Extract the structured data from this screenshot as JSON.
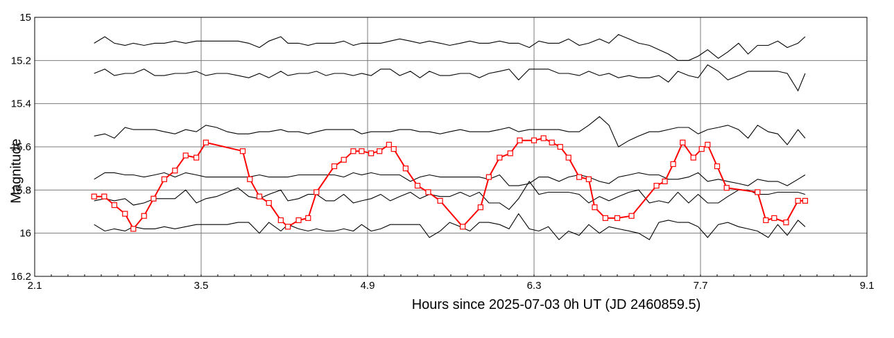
{
  "chart_data": {
    "type": "line",
    "xlabel": "Hours since 2025-07-03 0h UT (JD 2460859.5)",
    "ylabel": "Magnitude",
    "xlim": [
      2.1,
      9.1
    ],
    "ylim": [
      15.0,
      16.2
    ],
    "y_inverted": true,
    "grid": true,
    "x_major_ticks": [
      2.1,
      3.5,
      4.9,
      6.3,
      7.7,
      9.1
    ],
    "x_minor_step": 0.14,
    "y_ticks": [
      15.0,
      15.2,
      15.4,
      15.6,
      15.8,
      16.0,
      16.2
    ],
    "x_tick_labels": [
      "2.1",
      "3.5",
      "4.9",
      "6.3",
      "7.7",
      "9.1"
    ],
    "y_tick_labels": [
      "15",
      "15.2",
      "15.4",
      "15.6",
      "15.8",
      "16",
      "16.2"
    ],
    "target": {
      "color": "#ff0000",
      "marker": "open-square",
      "x": [
        2.6,
        2.685,
        2.77,
        2.86,
        2.93,
        3.02,
        3.1,
        3.19,
        3.28,
        3.37,
        3.46,
        3.54,
        3.85,
        3.91,
        3.99,
        4.07,
        4.17,
        4.23,
        4.32,
        4.4,
        4.47,
        4.62,
        4.7,
        4.78,
        4.85,
        4.93,
        5.0,
        5.08,
        5.12,
        5.22,
        5.32,
        5.41,
        5.51,
        5.7,
        5.85,
        5.92,
        6.01,
        6.1,
        6.18,
        6.3,
        6.38,
        6.45,
        6.52,
        6.59,
        6.68,
        6.76,
        6.81,
        6.9,
        7.0,
        7.12,
        7.33,
        7.4,
        7.47,
        7.55,
        7.64,
        7.71,
        7.76,
        7.84,
        7.92,
        8.18,
        8.25,
        8.32,
        8.42,
        8.52,
        8.58
      ],
      "y": [
        15.83,
        15.83,
        15.87,
        15.91,
        15.98,
        15.92,
        15.84,
        15.75,
        15.71,
        15.64,
        15.65,
        15.58,
        15.62,
        15.75,
        15.83,
        15.86,
        15.94,
        15.97,
        15.94,
        15.93,
        15.81,
        15.69,
        15.66,
        15.62,
        15.62,
        15.63,
        15.62,
        15.59,
        15.61,
        15.7,
        15.78,
        15.81,
        15.85,
        15.97,
        15.88,
        15.74,
        15.65,
        15.63,
        15.57,
        15.57,
        15.56,
        15.58,
        15.6,
        15.65,
        15.74,
        15.75,
        15.88,
        15.93,
        15.93,
        15.92,
        15.78,
        15.76,
        15.68,
        15.58,
        15.65,
        15.61,
        15.59,
        15.69,
        15.79,
        15.81,
        15.94,
        15.93,
        15.95,
        15.85,
        15.85
      ]
    },
    "comparison": {
      "color": "#000000",
      "x": [
        2.6,
        2.69,
        2.77,
        2.86,
        2.93,
        3.02,
        3.11,
        3.19,
        3.28,
        3.37,
        3.46,
        3.54,
        3.63,
        3.72,
        3.81,
        3.9,
        3.99,
        4.07,
        4.17,
        4.23,
        4.32,
        4.4,
        4.47,
        4.55,
        4.62,
        4.7,
        4.78,
        4.85,
        4.93,
        5.01,
        5.09,
        5.17,
        5.26,
        5.34,
        5.42,
        5.51,
        5.59,
        5.68,
        5.76,
        5.84,
        5.92,
        6.01,
        6.09,
        6.17,
        6.26,
        6.34,
        6.42,
        6.51,
        6.59,
        6.68,
        6.76,
        6.85,
        6.93,
        7.01,
        7.1,
        7.18,
        7.27,
        7.35,
        7.43,
        7.51,
        7.6,
        7.68,
        7.76,
        7.85,
        7.93,
        8.02,
        8.1,
        8.18,
        8.27,
        8.35,
        8.43,
        8.52,
        8.58
      ],
      "series": [
        {
          "y": [
            15.12,
            15.09,
            15.12,
            15.13,
            15.12,
            15.13,
            15.12,
            15.12,
            15.11,
            15.12,
            15.11,
            15.11,
            15.11,
            15.11,
            15.11,
            15.12,
            15.14,
            15.11,
            15.09,
            15.12,
            15.12,
            15.13,
            15.12,
            15.12,
            15.12,
            15.11,
            15.13,
            15.12,
            15.12,
            15.12,
            15.11,
            15.1,
            15.11,
            15.12,
            15.11,
            15.12,
            15.13,
            15.12,
            15.11,
            15.12,
            15.12,
            15.11,
            15.12,
            15.12,
            15.14,
            15.11,
            15.12,
            15.12,
            15.1,
            15.13,
            15.12,
            15.1,
            15.12,
            15.08,
            15.1,
            15.12,
            15.13,
            15.15,
            15.17,
            15.2,
            15.2,
            15.18,
            15.15,
            15.19,
            15.16,
            15.12,
            15.17,
            15.13,
            15.13,
            15.11,
            15.14,
            15.12,
            15.09
          ]
        },
        {
          "y": [
            15.26,
            15.24,
            15.27,
            15.26,
            15.26,
            15.24,
            15.27,
            15.27,
            15.26,
            15.26,
            15.25,
            15.27,
            15.26,
            15.26,
            15.27,
            15.28,
            15.26,
            15.28,
            15.25,
            15.27,
            15.26,
            15.26,
            15.25,
            15.27,
            15.26,
            15.26,
            15.27,
            15.26,
            15.27,
            15.24,
            15.24,
            15.27,
            15.25,
            15.28,
            15.25,
            15.27,
            15.27,
            15.26,
            15.26,
            15.28,
            15.26,
            15.25,
            15.24,
            15.29,
            15.24,
            15.24,
            15.24,
            15.26,
            15.26,
            15.27,
            15.25,
            15.27,
            15.26,
            15.28,
            15.27,
            15.28,
            15.28,
            15.27,
            15.3,
            15.25,
            15.27,
            15.28,
            15.22,
            15.25,
            15.29,
            15.27,
            15.25,
            15.25,
            15.25,
            15.25,
            15.26,
            15.34,
            15.26
          ]
        },
        {
          "y": [
            15.55,
            15.54,
            15.56,
            15.51,
            15.52,
            15.52,
            15.52,
            15.53,
            15.54,
            15.52,
            15.53,
            15.5,
            15.51,
            15.53,
            15.54,
            15.54,
            15.53,
            15.53,
            15.52,
            15.53,
            15.53,
            15.54,
            15.53,
            15.52,
            15.52,
            15.52,
            15.52,
            15.54,
            15.53,
            15.53,
            15.53,
            15.52,
            15.52,
            15.53,
            15.53,
            15.54,
            15.53,
            15.52,
            15.53,
            15.53,
            15.53,
            15.52,
            15.51,
            15.53,
            15.52,
            15.52,
            15.52,
            15.52,
            15.53,
            15.53,
            15.5,
            15.46,
            15.5,
            15.6,
            15.57,
            15.55,
            15.53,
            15.53,
            15.52,
            15.51,
            15.51,
            15.54,
            15.52,
            15.51,
            15.5,
            15.52,
            15.56,
            15.5,
            15.53,
            15.54,
            15.59,
            15.52,
            15.56
          ]
        },
        {
          "y": [
            15.75,
            15.72,
            15.72,
            15.73,
            15.73,
            15.74,
            15.73,
            15.72,
            15.74,
            15.72,
            15.73,
            15.74,
            15.74,
            15.74,
            15.74,
            15.74,
            15.73,
            15.74,
            15.74,
            15.74,
            15.73,
            15.73,
            15.73,
            15.73,
            15.73,
            15.74,
            15.72,
            15.73,
            15.72,
            15.73,
            15.73,
            15.73,
            15.76,
            15.74,
            15.73,
            15.74,
            15.74,
            15.74,
            15.74,
            15.74,
            15.75,
            15.73,
            15.78,
            15.78,
            15.77,
            15.74,
            15.74,
            15.76,
            15.74,
            15.73,
            15.74,
            15.76,
            15.77,
            15.74,
            15.73,
            15.72,
            15.73,
            15.73,
            15.75,
            15.75,
            15.74,
            15.72,
            15.76,
            15.75,
            15.76,
            15.77,
            15.78,
            15.75,
            15.76,
            15.76,
            15.78,
            15.75,
            15.73
          ]
        },
        {
          "y": [
            15.85,
            15.84,
            15.85,
            15.84,
            15.87,
            15.86,
            15.84,
            15.84,
            15.84,
            15.8,
            15.86,
            15.84,
            15.83,
            15.81,
            15.79,
            15.83,
            15.84,
            15.82,
            15.8,
            15.85,
            15.84,
            15.82,
            15.82,
            15.85,
            15.85,
            15.82,
            15.86,
            15.85,
            15.84,
            15.82,
            15.85,
            15.83,
            15.81,
            15.84,
            15.82,
            15.83,
            15.83,
            15.81,
            15.83,
            15.81,
            15.86,
            15.86,
            15.89,
            15.84,
            15.76,
            15.82,
            15.81,
            15.81,
            15.81,
            15.82,
            15.86,
            15.83,
            15.85,
            15.83,
            15.81,
            15.8,
            15.86,
            15.85,
            15.86,
            15.81,
            15.86,
            15.82,
            15.86,
            15.86,
            15.83,
            15.8,
            15.8,
            15.82,
            15.82,
            15.81,
            15.81,
            15.81,
            15.82
          ]
        },
        {
          "y": [
            15.96,
            15.99,
            15.98,
            15.99,
            15.97,
            15.98,
            15.98,
            15.97,
            15.98,
            15.97,
            15.96,
            15.96,
            15.96,
            15.96,
            15.95,
            15.95,
            16.0,
            15.95,
            15.99,
            15.96,
            15.98,
            15.99,
            15.98,
            15.99,
            15.99,
            15.98,
            15.99,
            15.96,
            15.99,
            15.98,
            15.96,
            15.96,
            15.96,
            15.96,
            16.02,
            15.99,
            15.95,
            15.97,
            15.99,
            15.95,
            15.95,
            15.96,
            15.98,
            15.91,
            15.98,
            15.99,
            15.97,
            16.03,
            15.99,
            16.01,
            15.96,
            16.0,
            15.97,
            15.98,
            15.99,
            16.0,
            16.03,
            15.95,
            15.94,
            15.95,
            15.95,
            15.97,
            16.02,
            15.96,
            15.95,
            15.97,
            15.98,
            15.99,
            16.02,
            15.96,
            16.01,
            15.94,
            15.97
          ]
        }
      ]
    }
  }
}
